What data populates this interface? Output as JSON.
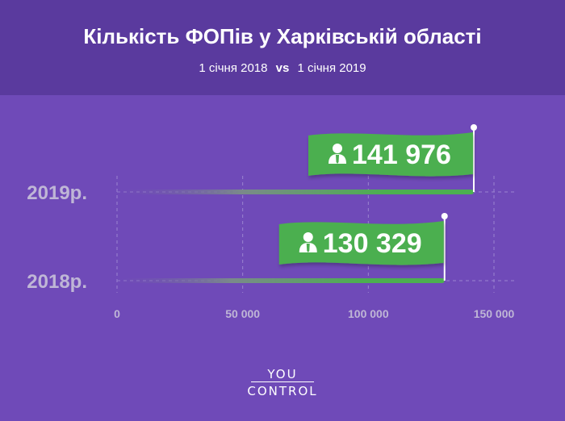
{
  "header": {
    "title": "Кількість ФОПів у Харківській області",
    "date_from": "1 січня 2018",
    "vs": "vs",
    "date_to": "1 січня 2019"
  },
  "logo": {
    "line1": "YOU",
    "line2": "CONTROL"
  },
  "colors": {
    "background": "#6f4ab8",
    "header": "#5a3a9e",
    "bar": "#4caf50",
    "flag": "#4caf50",
    "category_label": "#bfb6d6",
    "tick_label": "#bfb6d6"
  },
  "chart_data": {
    "type": "bar",
    "orientation": "horizontal",
    "categories": [
      "2019р.",
      "2018р."
    ],
    "values": [
      141976,
      130329
    ],
    "value_labels": [
      "141 976",
      "130 329"
    ],
    "xlim": [
      0,
      150000
    ],
    "x_ticks": [
      0,
      50000,
      100000,
      150000
    ],
    "x_tick_labels": [
      "0",
      "50 000",
      "100 000",
      "150 000"
    ],
    "grid": true,
    "icon": "person-icon"
  }
}
